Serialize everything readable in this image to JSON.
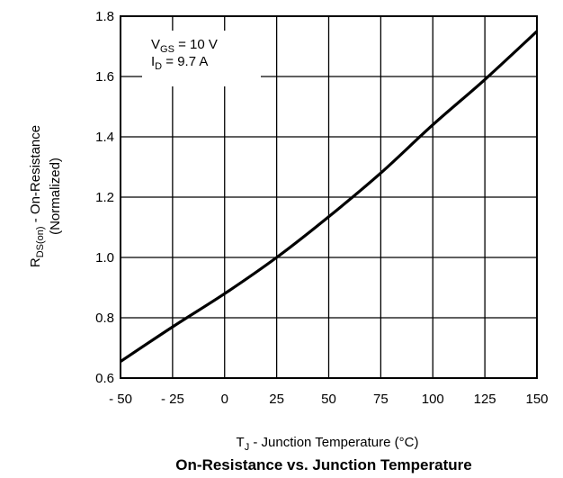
{
  "chart_data": {
    "type": "line",
    "title": "On-Resistance vs. Junction Temperature",
    "xlabel": {
      "main": "T",
      "sub": "J",
      "rest": " - Junction Temperature (°C)"
    },
    "ylabel": {
      "line1_main": "R",
      "line1_sub": "DS(on)",
      "line1_rest": " - On-Resistance",
      "line2": "(Normalized)"
    },
    "xlim": [
      -50,
      150
    ],
    "ylim": [
      0.6,
      1.8
    ],
    "x_ticks": [
      "- 50",
      "- 25",
      "0",
      "25",
      "50",
      "75",
      "100",
      "125",
      "150"
    ],
    "x_tick_values": [
      -50,
      -25,
      0,
      25,
      50,
      75,
      100,
      125,
      150
    ],
    "y_ticks": [
      "0.6",
      "0.8",
      "1.0",
      "1.2",
      "1.4",
      "1.6",
      "1.8"
    ],
    "y_tick_values": [
      0.6,
      0.8,
      1.0,
      1.2,
      1.4,
      1.6,
      1.8
    ],
    "grid": true,
    "annotations": [
      {
        "main": "V",
        "sub": "GS",
        "rest": " = 10 V"
      },
      {
        "main": "I",
        "sub": "D",
        "rest": " = 9.7 A"
      }
    ],
    "series": [
      {
        "line_color": "#000000",
        "x": [
          -50,
          -25,
          0,
          25,
          50,
          75,
          100,
          125,
          150
        ],
        "y": [
          0.655,
          0.77,
          0.88,
          1.0,
          1.135,
          1.28,
          1.44,
          1.59,
          1.75
        ]
      }
    ]
  }
}
